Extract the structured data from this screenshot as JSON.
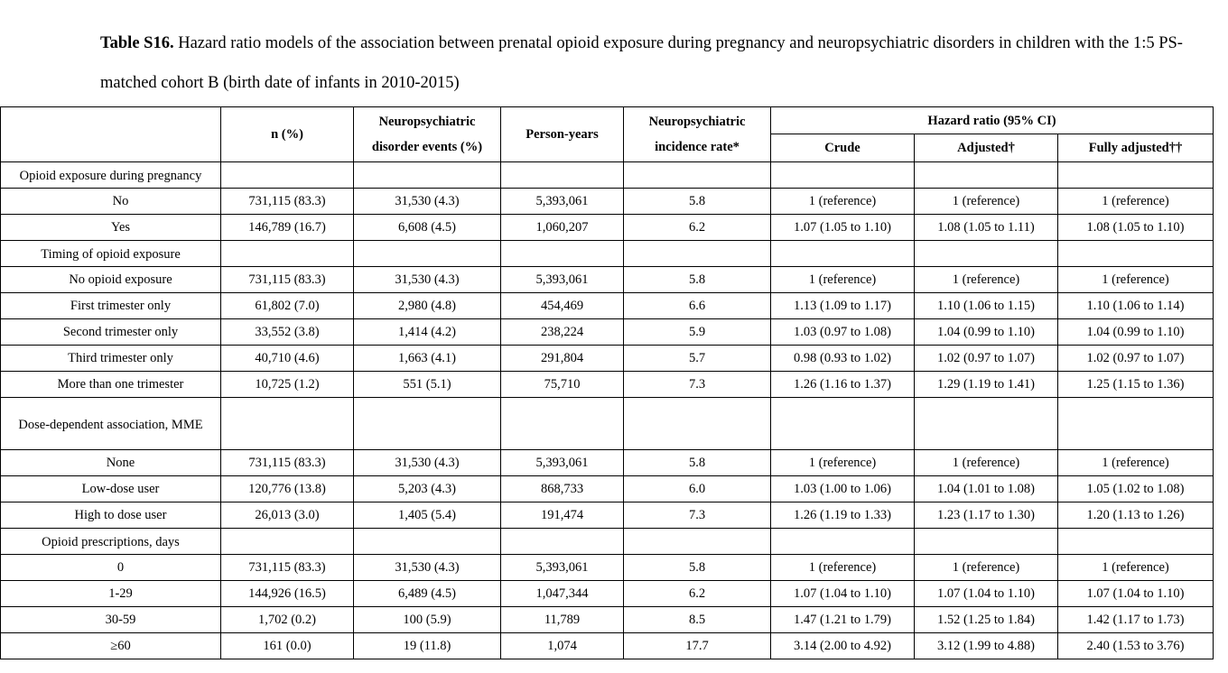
{
  "caption": {
    "label": "Table S16.",
    "text": " Hazard ratio models of the association between prenatal opioid exposure during pregnancy and neuropsychiatric disorders in children with the 1:5 PS-matched cohort B (birth date of infants in 2010-2015)"
  },
  "headers": {
    "n": "n (%)",
    "events_line1": "Neuropsychiatric",
    "events_line2": "disorder events (%)",
    "person_years": "Person-years",
    "rate_line1": "Neuropsychiatric",
    "rate_line2": "incidence rate*",
    "hr_group": "Hazard ratio (95% CI)",
    "crude": "Crude",
    "adjusted": "Adjusted†",
    "fully_adjusted": "Fully adjusted††"
  },
  "sections": [
    {
      "title": "Opioid exposure during pregnancy",
      "rows": [
        {
          "label": "No",
          "n": "731,115 (83.3)",
          "events": "31,530 (4.3)",
          "py": "5,393,061",
          "rate": "5.8",
          "crude": "1 (reference)",
          "adj": "1 (reference)",
          "full": "1 (reference)",
          "bold": false
        },
        {
          "label": "Yes",
          "n": "146,789 (16.7)",
          "events": "6,608 (4.5)",
          "py": "1,060,207",
          "rate": "6.2",
          "crude": "1.07 (1.05 to 1.10)",
          "adj": "1.08 (1.05 to 1.11)",
          "full": "1.08 (1.05 to 1.10)",
          "bold": true
        }
      ]
    },
    {
      "title": "Timing of opioid exposure",
      "rows": [
        {
          "label": "No opioid exposure",
          "n": "731,115 (83.3)",
          "events": "31,530 (4.3)",
          "py": "5,393,061",
          "rate": "5.8",
          "crude": "1 (reference)",
          "adj": "1 (reference)",
          "full": "1 (reference)",
          "bold": false
        },
        {
          "label": "First trimester only",
          "n": "61,802 (7.0)",
          "events": "2,980 (4.8)",
          "py": "454,469",
          "rate": "6.6",
          "crude": "1.13 (1.09 to 1.17)",
          "adj": "1.10 (1.06 to 1.15)",
          "full": "1.10 (1.06 to 1.14)",
          "bold": true
        },
        {
          "label": "Second trimester only",
          "n": "33,552 (3.8)",
          "events": "1,414 (4.2)",
          "py": "238,224",
          "rate": "5.9",
          "crude": "1.03 (0.97 to 1.08)",
          "adj": "1.04 (0.99 to 1.10)",
          "full": "1.04 (0.99 to 1.10)",
          "bold": false
        },
        {
          "label": "Third trimester only",
          "n": "40,710 (4.6)",
          "events": "1,663 (4.1)",
          "py": "291,804",
          "rate": "5.7",
          "crude": "0.98 (0.93 to 1.02)",
          "adj": "1.02 (0.97 to 1.07)",
          "full": "1.02 (0.97 to 1.07)",
          "bold": false
        },
        {
          "label": "More than one trimester",
          "n": "10,725 (1.2)",
          "events": "551 (5.1)",
          "py": "75,710",
          "rate": "7.3",
          "crude": "1.26 (1.16 to 1.37)",
          "adj": "1.29 (1.19 to 1.41)",
          "full": "1.25 (1.15 to 1.36)",
          "bold": true
        }
      ]
    },
    {
      "title": "Dose-dependent association, MME",
      "rows": [
        {
          "label": "None",
          "n": "731,115 (83.3)",
          "events": "31,530 (4.3)",
          "py": "5,393,061",
          "rate": "5.8",
          "crude": "1 (reference)",
          "adj": "1 (reference)",
          "full": "1 (reference)",
          "bold": false
        },
        {
          "label": "Low-dose user",
          "n": "120,776 (13.8)",
          "events": "5,203 (4.3)",
          "py": "868,733",
          "rate": "6.0",
          "crude": "1.03 (1.00 to 1.06)",
          "adj": "1.04 (1.01 to 1.08)",
          "full": "1.05 (1.02 to 1.08)",
          "bold": "partial"
        },
        {
          "label": "High to dose user",
          "n": "26,013 (3.0)",
          "events": "1,405 (5.4)",
          "py": "191,474",
          "rate": "7.3",
          "crude": "1.26 (1.19 to 1.33)",
          "adj": "1.23 (1.17 to 1.30)",
          "full": "1.20 (1.13 to 1.26)",
          "bold": true
        }
      ]
    },
    {
      "title": "Opioid prescriptions, days",
      "rows": [
        {
          "label": "0",
          "n": "731,115 (83.3)",
          "events": "31,530 (4.3)",
          "py": "5,393,061",
          "rate": "5.8",
          "crude": "1 (reference)",
          "adj": "1 (reference)",
          "full": "1 (reference)",
          "bold": false
        },
        {
          "label": "1-29",
          "n": "144,926 (16.5)",
          "events": "6,489 (4.5)",
          "py": "1,047,344",
          "rate": "6.2",
          "crude": "1.07 (1.04 to 1.10)",
          "adj": "1.07 (1.04 to 1.10)",
          "full": "1.07 (1.04 to 1.10)",
          "bold": true
        },
        {
          "label": "30-59",
          "n": "1,702 (0.2)",
          "events": "100 (5.9)",
          "py": "11,789",
          "rate": "8.5",
          "crude": "1.47 (1.21 to 1.79)",
          "adj": "1.52 (1.25 to 1.84)",
          "full": "1.42 (1.17 to 1.73)",
          "bold": true
        },
        {
          "label": "≥60",
          "n": "161 (0.0)",
          "events": "19 (11.8)",
          "py": "1,074",
          "rate": "17.7",
          "crude": "3.14 (2.00 to 4.92)",
          "adj": "3.12 (1.99 to 4.88)",
          "full": "2.40 (1.53 to 3.76)",
          "bold": true
        }
      ]
    }
  ]
}
